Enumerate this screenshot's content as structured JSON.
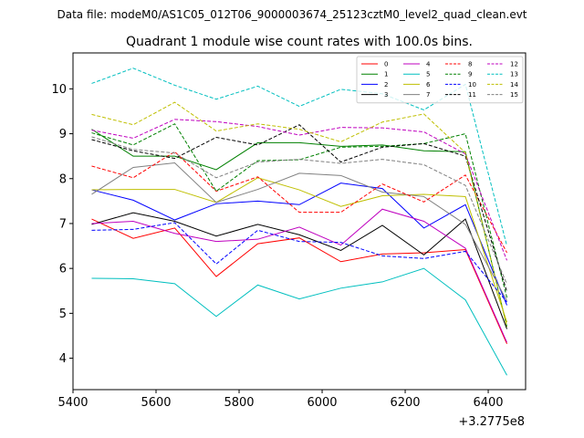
{
  "chart_data": {
    "type": "line",
    "suptitle": "Data file: modeM0/AS1C05_012T06_9000003674_25123cztM0_level2_quad_clean.evt",
    "title": "Quadrant 1 module wise count rates with 100.0s bins.",
    "xlabel": "",
    "ylabel": "",
    "x_offset_label": "+3.2775e8",
    "x": [
      5445,
      5545,
      5645,
      5745,
      5845,
      5945,
      6045,
      6145,
      6245,
      6345,
      6445
    ],
    "xlim": [
      5400,
      6490
    ],
    "ylim": [
      3.3,
      10.8
    ],
    "x_ticks": [
      5400,
      5600,
      5800,
      6000,
      6200,
      6400
    ],
    "y_ticks": [
      4,
      5,
      6,
      7,
      8,
      9,
      10
    ],
    "legend_position": "top-right",
    "series": [
      {
        "name": "0",
        "color": "#ff0000",
        "dash": "solid",
        "values": [
          7.1,
          6.67,
          6.9,
          5.82,
          6.55,
          6.68,
          6.15,
          6.32,
          6.35,
          6.42,
          4.32
        ]
      },
      {
        "name": "1",
        "color": "#008000",
        "dash": "solid",
        "values": [
          9.1,
          8.5,
          8.5,
          8.2,
          8.8,
          8.8,
          8.72,
          8.75,
          8.62,
          8.6,
          4.7
        ]
      },
      {
        "name": "2",
        "color": "#0000ff",
        "dash": "solid",
        "values": [
          7.75,
          7.52,
          7.08,
          7.44,
          7.5,
          7.42,
          7.9,
          7.78,
          6.9,
          7.42,
          5.18
        ]
      },
      {
        "name": "3",
        "color": "#000000",
        "dash": "solid",
        "values": [
          6.98,
          7.24,
          7.05,
          6.72,
          6.98,
          6.75,
          6.4,
          6.96,
          6.3,
          7.1,
          4.65
        ]
      },
      {
        "name": "4",
        "color": "#bf00bf",
        "dash": "solid",
        "values": [
          7.0,
          7.05,
          6.78,
          6.6,
          6.65,
          6.92,
          6.52,
          7.32,
          7.05,
          6.45,
          4.35
        ]
      },
      {
        "name": "5",
        "color": "#00bfbf",
        "dash": "solid",
        "values": [
          5.78,
          5.77,
          5.66,
          4.93,
          5.63,
          5.32,
          5.56,
          5.7,
          6.0,
          5.3,
          3.62
        ]
      },
      {
        "name": "6",
        "color": "#bfbf00",
        "dash": "solid",
        "values": [
          7.75,
          7.76,
          7.76,
          7.47,
          8.02,
          7.75,
          7.38,
          7.62,
          7.65,
          7.6,
          4.8
        ]
      },
      {
        "name": "7",
        "color": "#808080",
        "dash": "solid",
        "values": [
          7.65,
          8.25,
          8.35,
          7.47,
          7.76,
          8.12,
          8.07,
          7.7,
          7.6,
          6.98,
          5.28
        ]
      },
      {
        "name": "8",
        "color": "#ff0000",
        "dash": "dashed",
        "values": [
          8.28,
          8.02,
          8.6,
          7.72,
          8.04,
          7.25,
          7.25,
          7.88,
          7.48,
          8.08,
          6.35
        ]
      },
      {
        "name": "9",
        "color": "#008000",
        "dash": "dashed",
        "values": [
          9.02,
          8.75,
          9.22,
          7.72,
          8.4,
          8.42,
          8.7,
          8.72,
          8.78,
          9.0,
          5.35
        ]
      },
      {
        "name": "10",
        "color": "#0000ff",
        "dash": "dashed",
        "values": [
          6.85,
          6.87,
          7.02,
          6.1,
          6.85,
          6.6,
          6.58,
          6.28,
          6.22,
          6.38,
          5.25
        ]
      },
      {
        "name": "11",
        "color": "#000000",
        "dash": "dashed",
        "values": [
          8.87,
          8.62,
          8.45,
          8.92,
          8.75,
          9.2,
          8.37,
          8.7,
          8.78,
          8.5,
          5.48
        ]
      },
      {
        "name": "12",
        "color": "#bf00bf",
        "dash": "dashed",
        "values": [
          9.08,
          8.9,
          9.32,
          9.27,
          9.16,
          8.97,
          9.14,
          9.13,
          9.04,
          8.55,
          6.18
        ]
      },
      {
        "name": "13",
        "color": "#00bfbf",
        "dash": "dashed",
        "values": [
          10.12,
          10.46,
          10.08,
          9.77,
          10.06,
          9.61,
          9.99,
          9.89,
          9.53,
          10.1,
          6.5
        ]
      },
      {
        "name": "14",
        "color": "#bfbf00",
        "dash": "dashed",
        "values": [
          9.43,
          9.2,
          9.7,
          9.06,
          9.22,
          9.1,
          8.82,
          9.26,
          9.44,
          8.58,
          4.7
        ]
      },
      {
        "name": "15",
        "color": "#808080",
        "dash": "dashed",
        "values": [
          8.93,
          8.65,
          8.57,
          8.02,
          8.37,
          8.43,
          8.34,
          8.43,
          8.31,
          7.85,
          5.65
        ]
      }
    ]
  }
}
